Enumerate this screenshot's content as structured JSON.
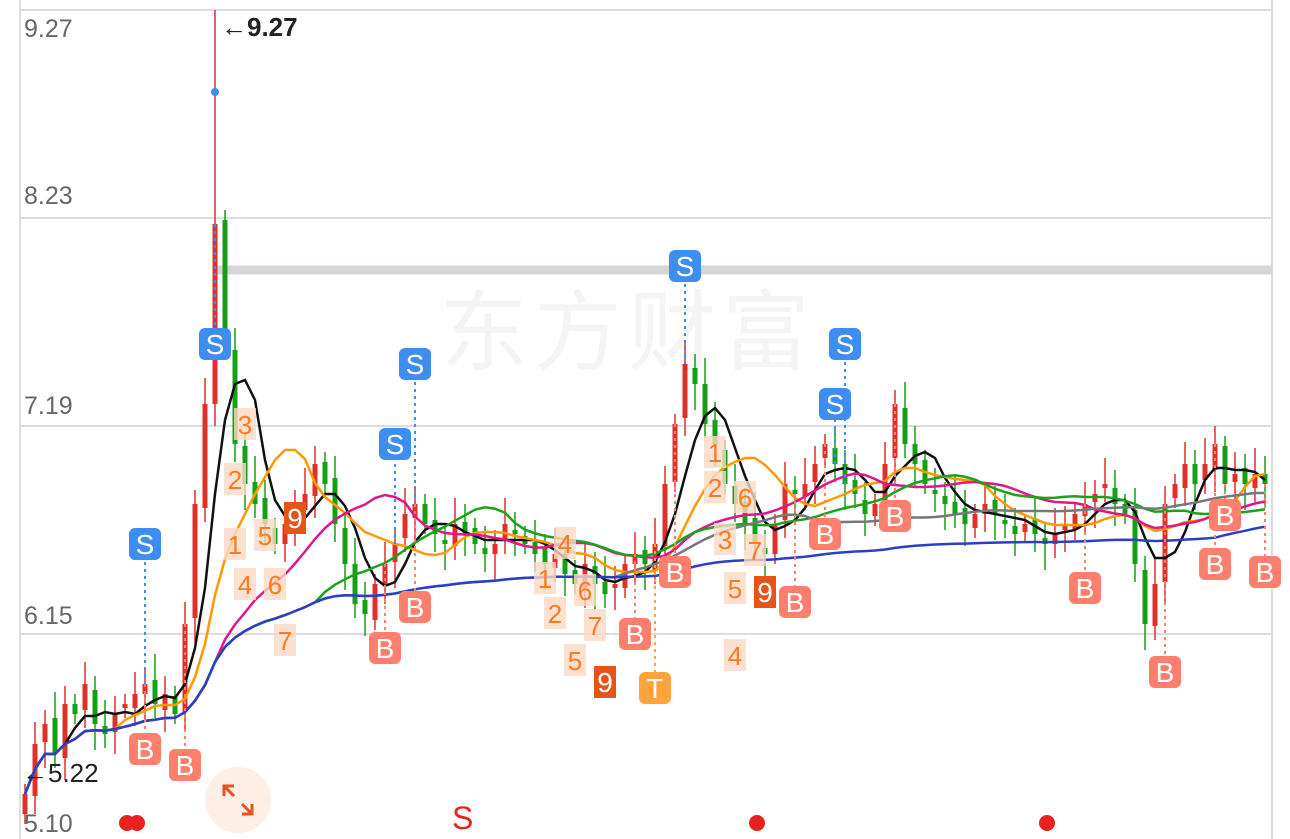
{
  "chart_data": {
    "type": "candlestick",
    "y_axis": {
      "ticks": [
        "9.27",
        "8.23",
        "7.19",
        "6.15",
        "5.10"
      ],
      "range": [
        5.1,
        9.27
      ]
    },
    "grid": true,
    "max_label": "←9.27",
    "min_label": "←5.22",
    "resistance_level": 7.97,
    "closes": [
      5.35,
      5.6,
      5.7,
      5.55,
      5.8,
      5.75,
      5.9,
      5.7,
      5.65,
      5.75,
      5.8,
      5.85,
      5.9,
      5.8,
      5.85,
      5.75,
      6.2,
      6.8,
      7.3,
      8.2,
      7.6,
      7.1,
      6.9,
      6.8,
      6.7,
      6.6,
      6.7,
      6.8,
      6.85,
      7.0,
      6.9,
      6.7,
      6.5,
      6.3,
      6.25,
      6.4,
      6.5,
      6.6,
      6.75,
      6.8,
      6.7,
      6.65,
      6.6,
      6.7,
      6.65,
      6.6,
      6.55,
      6.6,
      6.7,
      6.65,
      6.6,
      6.55,
      6.5,
      6.55,
      6.45,
      6.4,
      6.5,
      6.4,
      6.35,
      6.4,
      6.5,
      6.55,
      6.5,
      6.6,
      6.9,
      7.2,
      7.5,
      7.4,
      7.2,
      7.1,
      6.9,
      6.8,
      6.7,
      6.6,
      6.55,
      6.7,
      6.9,
      6.85,
      6.9,
      7.0,
      7.1,
      7.0,
      6.9,
      6.85,
      6.75,
      6.8,
      7.0,
      7.3,
      7.1,
      7.0,
      6.9,
      6.85,
      6.8,
      6.75,
      6.7,
      6.75,
      6.8,
      6.75,
      6.7,
      6.65,
      6.7,
      6.65,
      6.6,
      6.65,
      6.7,
      6.75,
      6.8,
      6.85,
      6.9,
      6.8,
      6.75,
      6.5,
      6.2,
      6.4,
      6.8,
      6.9,
      7.0,
      6.9,
      7.0,
      7.1,
      6.9,
      6.95,
      6.9,
      6.95,
      6.9
    ],
    "spike": {
      "day": 19,
      "high": 9.27
    },
    "moving_averages": [
      {
        "period": 5,
        "color": "#111111"
      },
      {
        "period": 10,
        "color": "#ff9900"
      },
      {
        "period": 20,
        "color": "#e0168c"
      },
      {
        "period": 30,
        "color": "#1aa31a"
      },
      {
        "period": 60,
        "color": "#777777"
      },
      {
        "period": 120,
        "color": "#2a3fc4"
      }
    ],
    "colors": {
      "up": "#e0302a",
      "down": "#14a014",
      "sell": "#3d8ef0",
      "buy": "#ff7f6e",
      "t": "#ffa33a",
      "nine": "#e5541a",
      "count": "#ff7a1f"
    },
    "signals": [
      {
        "type": "S",
        "day": 12,
        "price": 6.6
      },
      {
        "type": "S",
        "day": 19,
        "price": 7.6
      },
      {
        "type": "S",
        "day": 37,
        "price": 7.1
      },
      {
        "type": "S",
        "day": 39,
        "price": 7.5
      },
      {
        "type": "S",
        "day": 66,
        "price": 7.99
      },
      {
        "type": "S",
        "day": 81,
        "price": 7.65
      },
      {
        "type": "S",
        "day": 82,
        "price": 7.6
      },
      {
        "type": "B",
        "day": 12,
        "price": 5.4
      },
      {
        "type": "B",
        "day": 16,
        "price": 5.32
      },
      {
        "type": "B",
        "day": 36,
        "price": 6.08
      },
      {
        "type": "B",
        "day": 39,
        "price": 6.11
      },
      {
        "type": "B",
        "day": 61,
        "price": 6.15
      },
      {
        "type": "B",
        "day": 65,
        "price": 6.46
      },
      {
        "type": "B",
        "day": 77,
        "price": 6.31
      },
      {
        "type": "B",
        "day": 80,
        "price": 6.65
      },
      {
        "type": "B",
        "day": 87,
        "price": 6.74
      },
      {
        "type": "B",
        "day": 106,
        "price": 6.38
      },
      {
        "type": "B",
        "day": 114,
        "price": 5.96
      },
      {
        "type": "B",
        "day": 119,
        "price": 6.5
      },
      {
        "type": "B",
        "day": 120,
        "price": 6.57
      },
      {
        "type": "B",
        "day": 124,
        "price": 6.46
      },
      {
        "type": "T",
        "day": 63,
        "price": 6.23
      }
    ],
    "counts": [
      {
        "label": "1",
        "day": 21,
        "price": 6.6
      },
      {
        "label": "2",
        "day": 21,
        "price": 6.75
      },
      {
        "label": "3",
        "day": 22,
        "price": 6.85
      },
      {
        "label": "4",
        "day": 22,
        "price": 6.75
      },
      {
        "label": "5",
        "day": 24,
        "price": 6.47
      },
      {
        "label": "6",
        "day": 25,
        "price": 6.4
      },
      {
        "label": "7",
        "day": 26,
        "price": 6.47
      },
      {
        "label": "9",
        "day": 27,
        "price": 6.38,
        "boxed": true
      },
      {
        "label": "1",
        "day": 52,
        "price": 6.43
      },
      {
        "label": "2",
        "day": 53,
        "price": 6.43
      },
      {
        "label": "4",
        "day": 54,
        "price": 6.43
      },
      {
        "label": "5",
        "day": 55,
        "price": 6.37
      },
      {
        "label": "6",
        "day": 56,
        "price": 6.37
      },
      {
        "label": "7",
        "day": 57,
        "price": 6.37
      },
      {
        "label": "9",
        "day": 58,
        "price": 6.26,
        "boxed": true
      },
      {
        "label": "1",
        "day": 69,
        "price": 7.06
      },
      {
        "label": "2",
        "day": 69,
        "price": 7.06
      },
      {
        "label": "3",
        "day": 70,
        "price": 6.8
      },
      {
        "label": "5",
        "day": 71,
        "price": 6.73
      },
      {
        "label": "6",
        "day": 72,
        "price": 6.66
      },
      {
        "label": "4",
        "day": 71,
        "price": 6.57
      },
      {
        "label": "7",
        "day": 73,
        "price": 6.57
      },
      {
        "label": "9",
        "day": 74,
        "price": 6.36,
        "boxed": true
      }
    ],
    "bottom_markers": {
      "s_label": "S",
      "dot_days": [
        9,
        10,
        72,
        101
      ]
    }
  },
  "watermark": "东方财富",
  "icons": {
    "expand": "expand-arrows-icon"
  }
}
